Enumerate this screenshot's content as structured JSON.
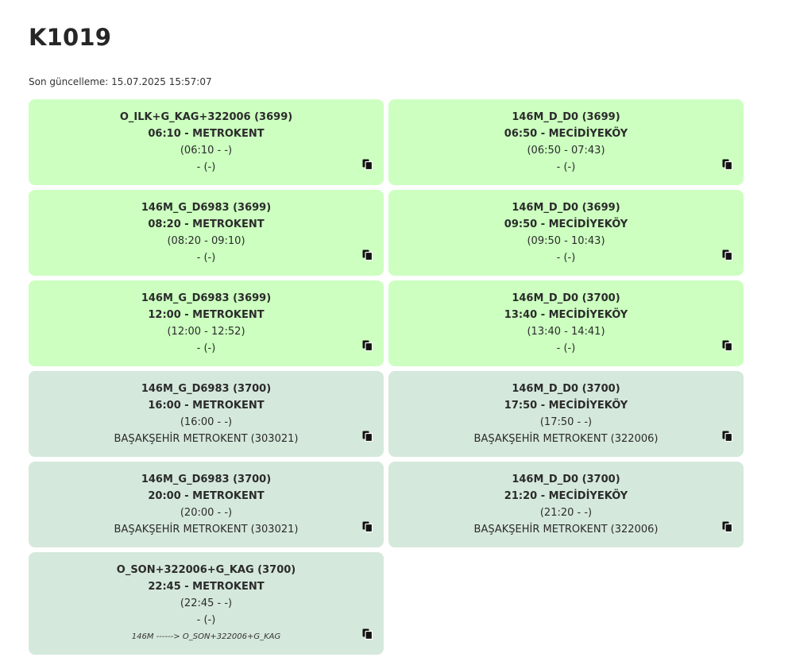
{
  "header": {
    "title": "K1019",
    "updated": "Son güncelleme: 15.07.2025 15:57:07"
  },
  "colors": {
    "active_card": "#ccffc0",
    "past_card": "#d5e8dc"
  },
  "cards": [
    {
      "route": "O_ILK+G_KAG+322006 (3699)",
      "time_dest": "06:10 - METROKENT",
      "window": "(06:10 - -)",
      "stop": "- (-)",
      "icon": "copy-icon",
      "state": "active"
    },
    {
      "route": "146M_D_D0 (3699)",
      "time_dest": "06:50 - MECİDİYEKÖY",
      "window": "(06:50 - 07:43)",
      "stop": "- (-)",
      "icon": "copy-icon",
      "state": "active"
    },
    {
      "route": "146M_G_D6983 (3699)",
      "time_dest": "08:20 - METROKENT",
      "window": "(08:20 - 09:10)",
      "stop": "- (-)",
      "icon": "copy-icon",
      "state": "active"
    },
    {
      "route": "146M_D_D0 (3699)",
      "time_dest": "09:50 - MECİDİYEKÖY",
      "window": "(09:50 - 10:43)",
      "stop": "- (-)",
      "icon": "copy-icon",
      "state": "active"
    },
    {
      "route": "146M_G_D6983 (3699)",
      "time_dest": "12:00 - METROKENT",
      "window": "(12:00 - 12:52)",
      "stop": "- (-)",
      "icon": "copy-icon",
      "state": "active"
    },
    {
      "route": "146M_D_D0 (3700)",
      "time_dest": "13:40 - MECİDİYEKÖY",
      "window": "(13:40 - 14:41)",
      "stop": "- (-)",
      "icon": "copy-icon",
      "state": "active"
    },
    {
      "route": "146M_G_D6983 (3700)",
      "time_dest": "16:00 - METROKENT",
      "window": "(16:00 - -)",
      "stop": "BAŞAKŞEHİR METROKENT (303021)",
      "icon": "copy-icon",
      "state": "past"
    },
    {
      "route": "146M_D_D0 (3700)",
      "time_dest": "17:50 - MECİDİYEKÖY",
      "window": "(17:50 - -)",
      "stop": "BAŞAKŞEHİR METROKENT (322006)",
      "icon": "copy-icon",
      "state": "past"
    },
    {
      "route": "146M_G_D6983 (3700)",
      "time_dest": "20:00 - METROKENT",
      "window": "(20:00 - -)",
      "stop": "BAŞAKŞEHİR METROKENT (303021)",
      "icon": "copy-icon",
      "state": "past"
    },
    {
      "route": "146M_D_D0 (3700)",
      "time_dest": "21:20 - MECİDİYEKÖY",
      "window": "(21:20 - -)",
      "stop": "BAŞAKŞEHİR METROKENT (322006)",
      "icon": "copy-icon",
      "state": "past"
    },
    {
      "route": "O_SON+322006+G_KAG (3700)",
      "time_dest": "22:45 - METROKENT",
      "window": "(22:45 - -)",
      "stop": "- (-)",
      "note": "146M ------> O_SON+322006+G_KAG",
      "icon": "copy-icon",
      "state": "past"
    }
  ]
}
